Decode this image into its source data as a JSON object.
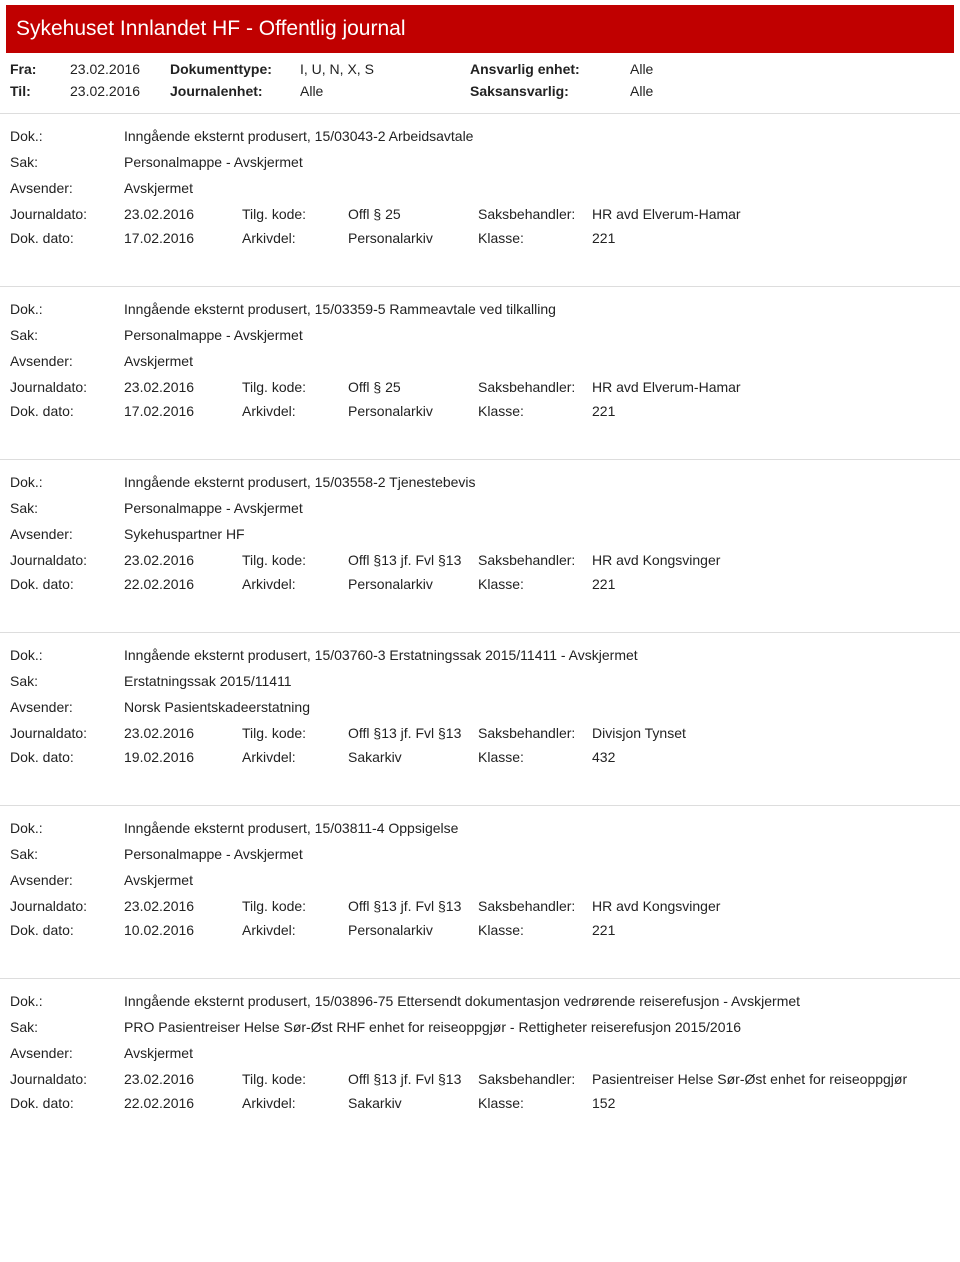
{
  "header": {
    "title": "Sykehuset Innlandet HF - Offentlig journal"
  },
  "meta": {
    "fra_label": "Fra:",
    "fra_value": "23.02.2016",
    "til_label": "Til:",
    "til_value": "23.02.2016",
    "doktype_label": "Dokumenttype:",
    "doktype_value": "I, U, N, X, S",
    "journalenhet_label": "Journalenhet:",
    "journalenhet_value": "Alle",
    "ansvarlig_label": "Ansvarlig enhet:",
    "ansvarlig_value": "Alle",
    "saksansvarlig_label": "Saksansvarlig:",
    "saksansvarlig_value": "Alle"
  },
  "labels": {
    "dok": "Dok.:",
    "sak": "Sak:",
    "avsender": "Avsender:",
    "journaldato": "Journaldato:",
    "dokdato": "Dok. dato:",
    "tilgkode": "Tilg. kode:",
    "arkivdel": "Arkivdel:",
    "saksbehandler": "Saksbehandler:",
    "klasse": "Klasse:"
  },
  "entries": [
    {
      "dok": "Inngående eksternt produsert, 15/03043-2 Arbeidsavtale",
      "sak": "Personalmappe - Avskjermet",
      "avsender": "Avskjermet",
      "journaldato": "23.02.2016",
      "tilgkode": "Offl § 25",
      "saksbehandler": "HR avd Elverum-Hamar",
      "dokdato": "17.02.2016",
      "arkivdel": "Personalarkiv",
      "klasse": "221"
    },
    {
      "dok": "Inngående eksternt produsert, 15/03359-5 Rammeavtale ved tilkalling",
      "sak": "Personalmappe - Avskjermet",
      "avsender": "Avskjermet",
      "journaldato": "23.02.2016",
      "tilgkode": "Offl § 25",
      "saksbehandler": "HR avd Elverum-Hamar",
      "dokdato": "17.02.2016",
      "arkivdel": "Personalarkiv",
      "klasse": "221"
    },
    {
      "dok": "Inngående eksternt produsert, 15/03558-2 Tjenestebevis",
      "sak": "Personalmappe - Avskjermet",
      "avsender": "Sykehuspartner HF",
      "journaldato": "23.02.2016",
      "tilgkode": "Offl §13 jf. Fvl §13",
      "saksbehandler": "HR avd Kongsvinger",
      "dokdato": "22.02.2016",
      "arkivdel": "Personalarkiv",
      "klasse": "221"
    },
    {
      "dok": "Inngående eksternt produsert, 15/03760-3 Erstatningssak 2015/11411 - Avskjermet",
      "sak": "Erstatningssak 2015/11411",
      "avsender": "Norsk Pasientskadeerstatning",
      "journaldato": "23.02.2016",
      "tilgkode": "Offl §13 jf. Fvl §13",
      "saksbehandler": "Divisjon Tynset",
      "dokdato": "19.02.2016",
      "arkivdel": "Sakarkiv",
      "klasse": "432"
    },
    {
      "dok": "Inngående eksternt produsert, 15/03811-4 Oppsigelse",
      "sak": "Personalmappe - Avskjermet",
      "avsender": "Avskjermet",
      "journaldato": "23.02.2016",
      "tilgkode": "Offl §13 jf. Fvl §13",
      "saksbehandler": "HR avd Kongsvinger",
      "dokdato": "10.02.2016",
      "arkivdel": "Personalarkiv",
      "klasse": "221"
    },
    {
      "dok": "Inngående eksternt produsert, 15/03896-75 Ettersendt dokumentasjon vedrørende reiserefusjon - Avskjermet",
      "sak": "PRO Pasientreiser Helse Sør-Øst RHF enhet for reiseoppgjør - Rettigheter reiserefusjon 2015/2016",
      "avsender": "Avskjermet",
      "journaldato": "23.02.2016",
      "tilgkode": "Offl §13 jf. Fvl §13",
      "saksbehandler": "Pasientreiser Helse Sør-Øst enhet for reiseoppgjør",
      "dokdato": "22.02.2016",
      "arkivdel": "Sakarkiv",
      "klasse": "152"
    }
  ]
}
